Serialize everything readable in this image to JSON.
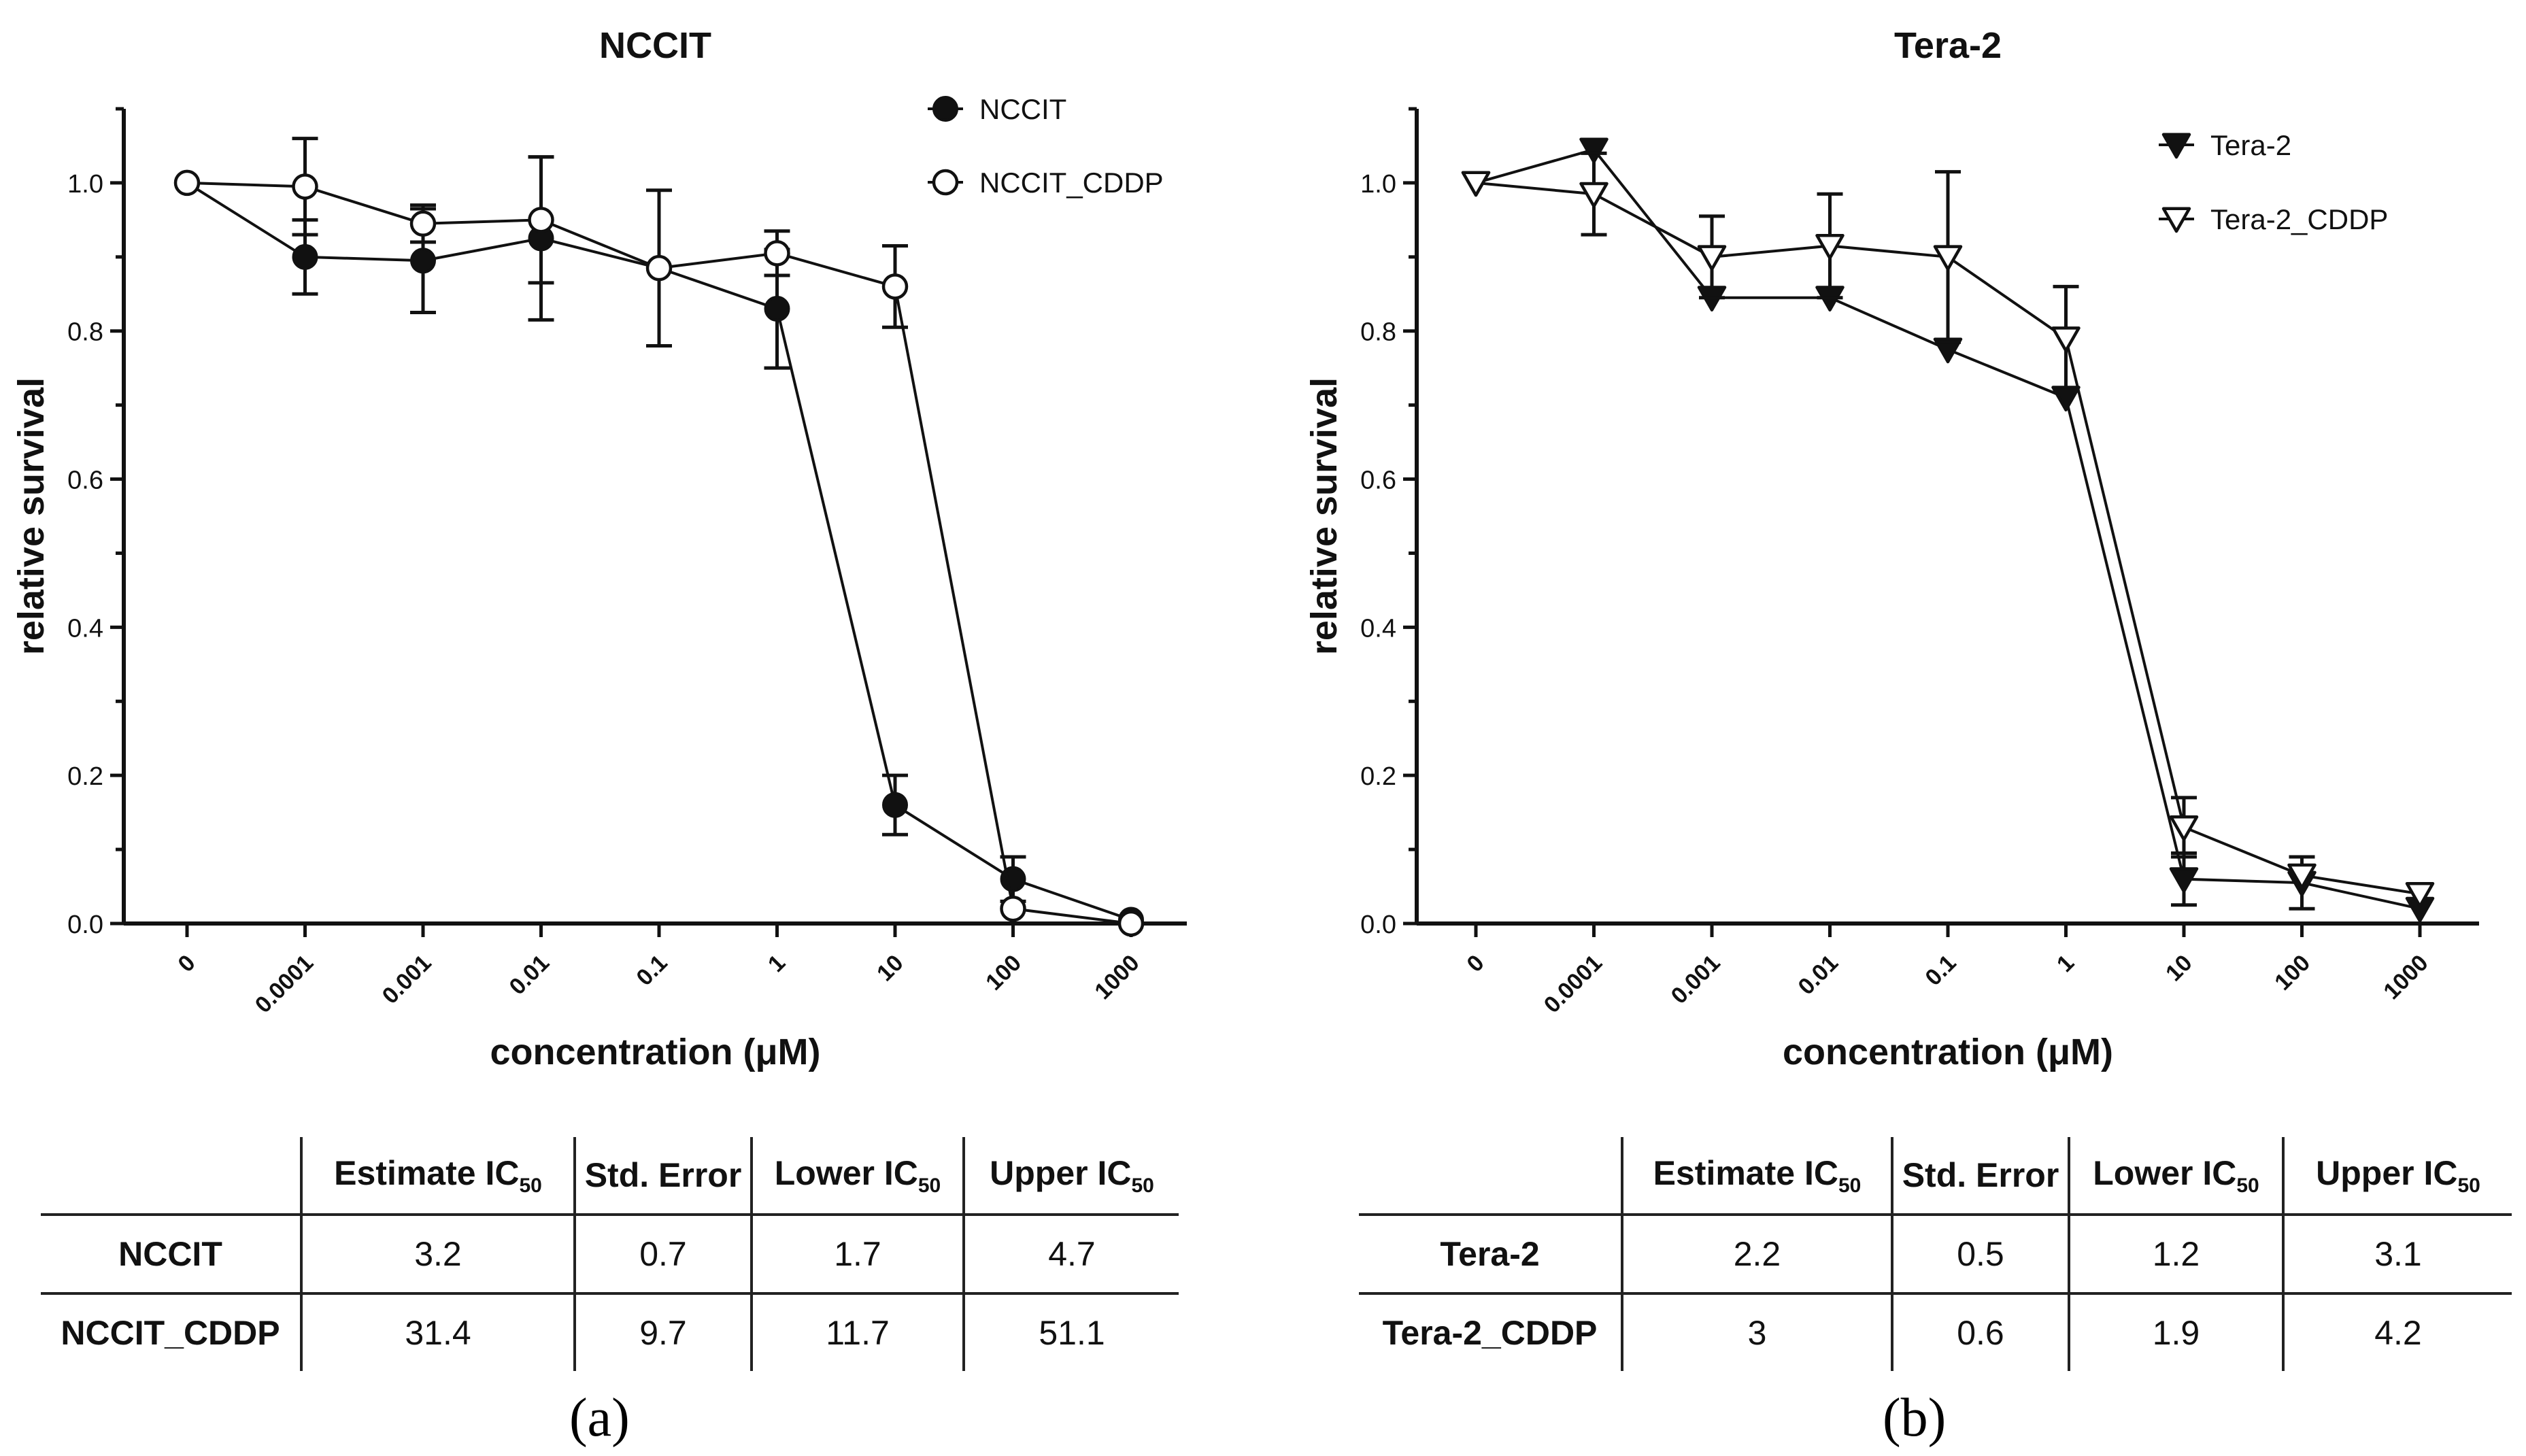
{
  "chart_data": [
    {
      "type": "line",
      "title": "NCCIT",
      "xlabel": "concentration (μM)",
      "ylabel": "relative survival",
      "categories": [
        "0",
        "0.0001",
        "0.001",
        "0.01",
        "0.1",
        "1",
        "10",
        "100",
        "1000"
      ],
      "ylim": [
        0,
        1.1
      ],
      "yticks": [
        "0.0",
        "0.2",
        "0.4",
        "0.6",
        "0.8",
        "1.0"
      ],
      "grid": false,
      "legend_position": "top-right",
      "series": [
        {
          "name": "NCCIT",
          "marker": "filled-circle",
          "values": [
            1.0,
            0.9,
            0.895,
            0.925,
            0.885,
            0.83,
            0.16,
            0.06,
            0.005
          ],
          "errors": [
            0.0,
            0.05,
            0.07,
            0.11,
            0.0,
            0.08,
            0.04,
            0.03,
            0.0
          ]
        },
        {
          "name": "NCCIT_CDDP",
          "marker": "open-circle",
          "values": [
            1.0,
            0.995,
            0.945,
            0.95,
            0.885,
            0.905,
            0.86,
            0.02,
            0.0
          ],
          "errors": [
            0.0,
            0.065,
            0.025,
            0.085,
            0.105,
            0.03,
            0.055,
            0.0,
            0.0
          ]
        }
      ]
    },
    {
      "type": "line",
      "title": "Tera-2",
      "xlabel": "concentration (μM)",
      "ylabel": "relative survival",
      "categories": [
        "0",
        "0.0001",
        "0.001",
        "0.01",
        "0.1",
        "1",
        "10",
        "100",
        "1000"
      ],
      "ylim": [
        0,
        1.1
      ],
      "yticks": [
        "0.0",
        "0.2",
        "0.4",
        "0.6",
        "0.8",
        "1.0"
      ],
      "grid": false,
      "legend_position": "top-right",
      "series": [
        {
          "name": "Tera-2",
          "marker": "filled-triangle-down",
          "values": [
            1.0,
            1.045,
            0.845,
            0.845,
            0.775,
            0.71,
            0.06,
            0.055,
            0.02
          ],
          "errors": [
            0.0,
            0.0,
            0.0,
            0.0,
            0.0,
            0.0,
            0.035,
            0.035,
            0.0
          ]
        },
        {
          "name": "Tera-2_CDDP",
          "marker": "open-triangle-down",
          "values": [
            1.0,
            0.985,
            0.9,
            0.915,
            0.9,
            0.79,
            0.13,
            0.065,
            0.04
          ],
          "errors": [
            0.0,
            0.055,
            0.055,
            0.07,
            0.115,
            0.07,
            0.04,
            0.0,
            0.0
          ]
        }
      ]
    }
  ],
  "tables": {
    "a": {
      "row_labels": [
        "NCCIT",
        "NCCIT_CDDP"
      ],
      "rows": [
        [
          "3.2",
          "0.7",
          "1.7",
          "4.7"
        ],
        [
          "31.4",
          "9.7",
          "11.7",
          "51.1"
        ]
      ]
    },
    "b": {
      "row_labels": [
        "Tera-2",
        "Tera-2_CDDP"
      ],
      "rows": [
        [
          "2.2",
          "0.5",
          "1.2",
          "3.1"
        ],
        [
          "3",
          "0.6",
          "1.9",
          "4.2"
        ]
      ]
    },
    "headers": {
      "estimate": "Estimate IC",
      "std_error": "Std. Error",
      "lower": "Lower IC",
      "upper": "Upper IC",
      "subscript": "50"
    }
  },
  "panel_labels": [
    "(a)",
    "(b)"
  ]
}
